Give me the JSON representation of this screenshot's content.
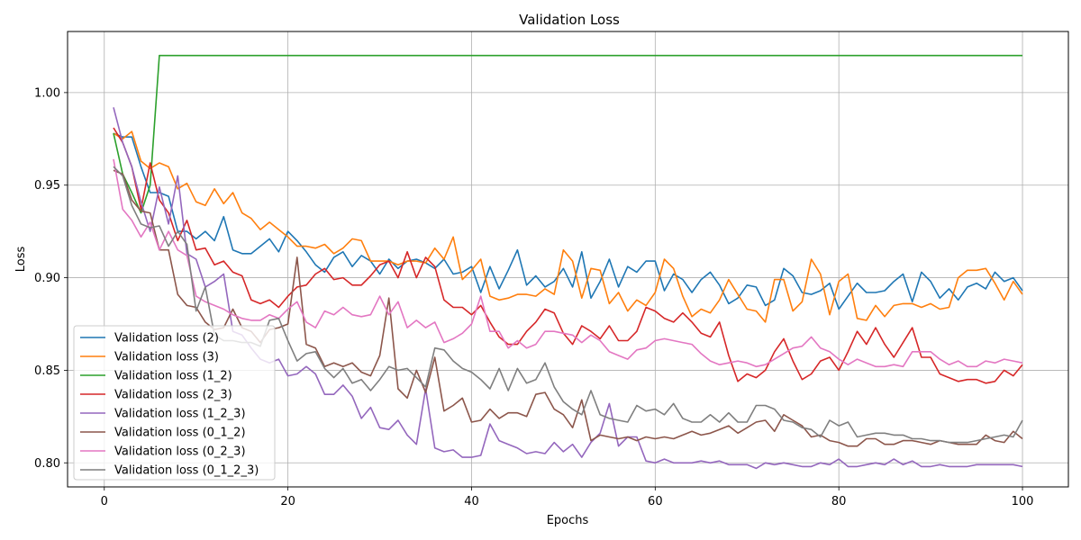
{
  "chart_data": {
    "type": "line",
    "title": "Validation Loss",
    "xlabel": "Epochs",
    "ylabel": "Loss",
    "xlim": [
      -4,
      105
    ],
    "ylim": [
      0.787,
      1.033
    ],
    "xticks": [
      0,
      20,
      40,
      60,
      80,
      100
    ],
    "yticks": [
      0.8,
      0.85,
      0.9,
      0.95,
      1.0
    ],
    "ytick_labels": [
      "0.80",
      "0.85",
      "0.90",
      "0.95",
      "1.00"
    ],
    "grid": true,
    "legend_position": "lower-left",
    "series": [
      {
        "name": "Validation loss (2)",
        "color": "#1f77b4",
        "values": [
          0.978,
          0.976,
          0.976,
          0.96,
          0.946,
          0.946,
          0.944,
          0.925,
          0.925,
          0.921,
          0.925,
          0.92,
          0.933,
          0.915,
          0.913,
          0.913,
          0.917,
          0.921,
          0.914,
          0.925,
          0.92,
          0.914,
          0.907,
          0.903,
          0.911,
          0.914,
          0.906,
          0.912,
          0.909,
          0.902,
          0.91,
          0.905,
          0.909,
          0.91,
          0.908,
          0.905,
          0.91,
          0.902,
          0.903,
          0.906,
          0.892,
          0.906,
          0.894,
          0.904,
          0.915,
          0.896,
          0.901,
          0.895,
          0.898,
          0.905,
          0.895,
          0.914,
          0.889,
          0.898,
          0.91,
          0.895,
          0.906,
          0.903,
          0.909,
          0.909,
          0.893,
          0.902,
          0.899,
          0.892,
          0.899,
          0.903,
          0.896,
          0.886,
          0.889,
          0.896,
          0.895,
          0.885,
          0.888,
          0.905,
          0.901,
          0.892,
          0.891,
          0.893,
          0.897,
          0.883,
          0.89,
          0.897,
          0.892,
          0.892,
          0.893,
          0.898,
          0.902,
          0.887,
          0.903,
          0.898,
          0.889,
          0.894,
          0.888,
          0.895,
          0.897,
          0.894,
          0.903,
          0.898,
          0.9,
          0.893
        ]
      },
      {
        "name": "Validation loss (3)",
        "color": "#ff7f0e",
        "values": [
          0.978,
          0.975,
          0.979,
          0.963,
          0.959,
          0.962,
          0.96,
          0.948,
          0.951,
          0.941,
          0.939,
          0.948,
          0.94,
          0.946,
          0.935,
          0.932,
          0.926,
          0.93,
          0.926,
          0.922,
          0.917,
          0.917,
          0.916,
          0.918,
          0.913,
          0.916,
          0.921,
          0.92,
          0.909,
          0.909,
          0.909,
          0.907,
          0.909,
          0.909,
          0.908,
          0.916,
          0.91,
          0.922,
          0.899,
          0.904,
          0.91,
          0.89,
          0.888,
          0.889,
          0.891,
          0.891,
          0.89,
          0.894,
          0.891,
          0.915,
          0.909,
          0.889,
          0.905,
          0.904,
          0.886,
          0.892,
          0.882,
          0.888,
          0.885,
          0.892,
          0.91,
          0.905,
          0.89,
          0.879,
          0.883,
          0.881,
          0.888,
          0.899,
          0.891,
          0.883,
          0.882,
          0.876,
          0.899,
          0.899,
          0.882,
          0.887,
          0.91,
          0.902,
          0.88,
          0.898,
          0.902,
          0.878,
          0.877,
          0.885,
          0.879,
          0.885,
          0.886,
          0.886,
          0.884,
          0.886,
          0.883,
          0.884,
          0.9,
          0.904,
          0.904,
          0.905,
          0.897,
          0.888,
          0.898,
          0.891
        ]
      },
      {
        "name": "Validation loss (1_2)",
        "color": "#2ca02c",
        "values": [
          0.978,
          0.956,
          0.946,
          0.935,
          0.95,
          1.02,
          1.02,
          1.02,
          1.02,
          1.02,
          1.02,
          1.02,
          1.02,
          1.02,
          1.02,
          1.02,
          1.02,
          1.02,
          1.02,
          1.02,
          1.02,
          1.02,
          1.02,
          1.02,
          1.02,
          1.02,
          1.02,
          1.02,
          1.02,
          1.02,
          1.02,
          1.02,
          1.02,
          1.02,
          1.02,
          1.02,
          1.02,
          1.02,
          1.02,
          1.02,
          1.02,
          1.02,
          1.02,
          1.02,
          1.02,
          1.02,
          1.02,
          1.02,
          1.02,
          1.02,
          1.02,
          1.02,
          1.02,
          1.02,
          1.02,
          1.02,
          1.02,
          1.02,
          1.02,
          1.02,
          1.02,
          1.02,
          1.02,
          1.02,
          1.02,
          1.02,
          1.02,
          1.02,
          1.02,
          1.02,
          1.02,
          1.02,
          1.02,
          1.02,
          1.02,
          1.02,
          1.02,
          1.02,
          1.02,
          1.02,
          1.02,
          1.02,
          1.02,
          1.02,
          1.02,
          1.02,
          1.02,
          1.02,
          1.02,
          1.02,
          1.02,
          1.02,
          1.02,
          1.02,
          1.02,
          1.02,
          1.02,
          1.02,
          1.02,
          1.02
        ]
      },
      {
        "name": "Validation loss (2_3)",
        "color": "#d62728",
        "values": [
          0.981,
          0.973,
          0.96,
          0.937,
          0.962,
          0.942,
          0.935,
          0.92,
          0.931,
          0.915,
          0.916,
          0.907,
          0.909,
          0.903,
          0.901,
          0.888,
          0.886,
          0.888,
          0.884,
          0.89,
          0.895,
          0.896,
          0.902,
          0.905,
          0.899,
          0.9,
          0.896,
          0.896,
          0.901,
          0.907,
          0.909,
          0.9,
          0.914,
          0.9,
          0.911,
          0.906,
          0.888,
          0.884,
          0.884,
          0.88,
          0.885,
          0.876,
          0.868,
          0.864,
          0.864,
          0.871,
          0.876,
          0.883,
          0.881,
          0.87,
          0.864,
          0.874,
          0.871,
          0.867,
          0.874,
          0.866,
          0.866,
          0.871,
          0.884,
          0.882,
          0.878,
          0.876,
          0.881,
          0.876,
          0.87,
          0.868,
          0.876,
          0.858,
          0.844,
          0.848,
          0.846,
          0.85,
          0.86,
          0.867,
          0.855,
          0.845,
          0.848,
          0.855,
          0.857,
          0.85,
          0.86,
          0.871,
          0.864,
          0.873,
          0.864,
          0.857,
          0.865,
          0.873,
          0.857,
          0.857,
          0.848,
          0.846,
          0.844,
          0.845,
          0.845,
          0.843,
          0.844,
          0.85,
          0.847,
          0.853
        ]
      },
      {
        "name": "Validation loss (1_2_3)",
        "color": "#9467bd",
        "values": [
          0.992,
          0.973,
          0.96,
          0.941,
          0.925,
          0.949,
          0.929,
          0.955,
          0.913,
          0.91,
          0.895,
          0.898,
          0.902,
          0.871,
          0.869,
          0.862,
          0.856,
          0.854,
          0.856,
          0.847,
          0.848,
          0.852,
          0.848,
          0.837,
          0.837,
          0.842,
          0.836,
          0.824,
          0.83,
          0.819,
          0.818,
          0.823,
          0.815,
          0.81,
          0.84,
          0.808,
          0.806,
          0.807,
          0.803,
          0.803,
          0.804,
          0.821,
          0.812,
          0.81,
          0.808,
          0.805,
          0.806,
          0.805,
          0.811,
          0.806,
          0.81,
          0.803,
          0.811,
          0.816,
          0.832,
          0.809,
          0.814,
          0.814,
          0.801,
          0.8,
          0.802,
          0.8,
          0.8,
          0.8,
          0.801,
          0.8,
          0.801,
          0.799,
          0.799,
          0.799,
          0.797,
          0.8,
          0.799,
          0.8,
          0.799,
          0.798,
          0.798,
          0.8,
          0.799,
          0.802,
          0.798,
          0.798,
          0.799,
          0.8,
          0.799,
          0.802,
          0.799,
          0.801,
          0.798,
          0.798,
          0.799,
          0.798,
          0.798,
          0.798,
          0.799,
          0.799,
          0.799,
          0.799,
          0.799,
          0.798
        ]
      },
      {
        "name": "Validation loss (0_1_2)",
        "color": "#8c564b",
        "values": [
          0.958,
          0.956,
          0.942,
          0.936,
          0.935,
          0.915,
          0.915,
          0.891,
          0.885,
          0.884,
          0.876,
          0.872,
          0.873,
          0.883,
          0.873,
          0.871,
          0.865,
          0.872,
          0.873,
          0.875,
          0.911,
          0.864,
          0.862,
          0.852,
          0.854,
          0.852,
          0.854,
          0.849,
          0.847,
          0.858,
          0.889,
          0.84,
          0.835,
          0.85,
          0.838,
          0.857,
          0.828,
          0.831,
          0.835,
          0.822,
          0.823,
          0.829,
          0.824,
          0.827,
          0.827,
          0.825,
          0.837,
          0.838,
          0.829,
          0.826,
          0.819,
          0.834,
          0.812,
          0.815,
          0.814,
          0.813,
          0.814,
          0.812,
          0.814,
          0.813,
          0.814,
          0.813,
          0.815,
          0.817,
          0.815,
          0.816,
          0.818,
          0.82,
          0.816,
          0.819,
          0.822,
          0.823,
          0.817,
          0.826,
          0.823,
          0.82,
          0.814,
          0.815,
          0.812,
          0.811,
          0.809,
          0.809,
          0.813,
          0.813,
          0.81,
          0.81,
          0.812,
          0.812,
          0.811,
          0.81,
          0.812,
          0.811,
          0.81,
          0.81,
          0.81,
          0.815,
          0.812,
          0.811,
          0.817,
          0.813
        ]
      },
      {
        "name": "Validation loss (0_2_3)",
        "color": "#e377c2",
        "values": [
          0.964,
          0.937,
          0.931,
          0.922,
          0.93,
          0.915,
          0.925,
          0.915,
          0.912,
          0.89,
          0.887,
          0.885,
          0.883,
          0.88,
          0.878,
          0.877,
          0.877,
          0.88,
          0.878,
          0.883,
          0.887,
          0.876,
          0.873,
          0.882,
          0.88,
          0.884,
          0.88,
          0.879,
          0.88,
          0.89,
          0.88,
          0.887,
          0.873,
          0.877,
          0.873,
          0.876,
          0.865,
          0.867,
          0.87,
          0.875,
          0.89,
          0.871,
          0.871,
          0.862,
          0.866,
          0.862,
          0.864,
          0.871,
          0.871,
          0.87,
          0.869,
          0.865,
          0.869,
          0.866,
          0.86,
          0.858,
          0.856,
          0.861,
          0.862,
          0.866,
          0.867,
          0.866,
          0.865,
          0.864,
          0.859,
          0.855,
          0.853,
          0.854,
          0.855,
          0.854,
          0.852,
          0.853,
          0.856,
          0.859,
          0.862,
          0.863,
          0.868,
          0.862,
          0.86,
          0.856,
          0.853,
          0.856,
          0.854,
          0.852,
          0.852,
          0.853,
          0.852,
          0.86,
          0.86,
          0.86,
          0.856,
          0.853,
          0.855,
          0.852,
          0.852,
          0.855,
          0.854,
          0.856,
          0.855,
          0.854
        ]
      },
      {
        "name": "Validation loss (0_1_2_3)",
        "color": "#7f7f7f",
        "values": [
          0.96,
          0.955,
          0.939,
          0.929,
          0.927,
          0.928,
          0.917,
          0.925,
          0.918,
          0.882,
          0.895,
          0.869,
          0.866,
          0.866,
          0.865,
          0.865,
          0.863,
          0.877,
          0.878,
          0.866,
          0.855,
          0.859,
          0.86,
          0.851,
          0.846,
          0.851,
          0.843,
          0.845,
          0.839,
          0.845,
          0.852,
          0.85,
          0.851,
          0.846,
          0.841,
          0.862,
          0.861,
          0.855,
          0.851,
          0.849,
          0.845,
          0.84,
          0.851,
          0.839,
          0.851,
          0.843,
          0.845,
          0.854,
          0.841,
          0.833,
          0.829,
          0.826,
          0.839,
          0.826,
          0.824,
          0.823,
          0.822,
          0.831,
          0.828,
          0.829,
          0.826,
          0.832,
          0.824,
          0.822,
          0.822,
          0.826,
          0.822,
          0.827,
          0.822,
          0.822,
          0.831,
          0.831,
          0.829,
          0.823,
          0.822,
          0.819,
          0.818,
          0.814,
          0.823,
          0.82,
          0.822,
          0.814,
          0.815,
          0.816,
          0.816,
          0.815,
          0.815,
          0.813,
          0.813,
          0.812,
          0.812,
          0.811,
          0.811,
          0.811,
          0.812,
          0.813,
          0.814,
          0.815,
          0.814,
          0.823
        ]
      }
    ]
  }
}
